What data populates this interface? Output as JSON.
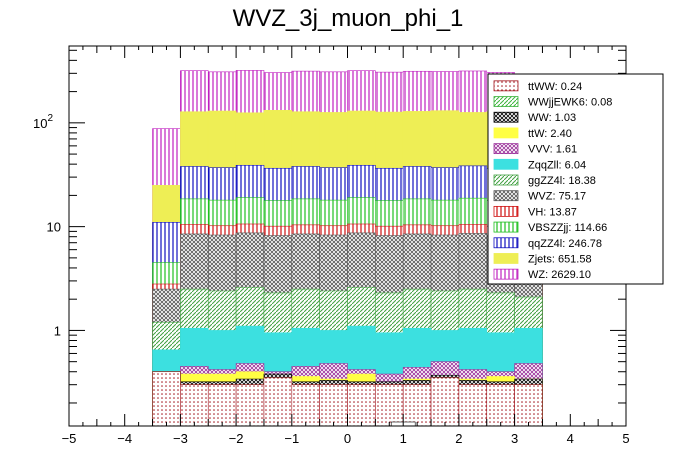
{
  "chart_data": {
    "type": "bar",
    "title": "WVZ_3j_muon_phi_1",
    "stacked": true,
    "log_y": true,
    "grid": false,
    "legend_position": "top-right",
    "xlim": [
      -5,
      5
    ],
    "ylim": [
      0.12,
      550
    ],
    "x_ticks": [
      "−5",
      "−4",
      "−3",
      "−2",
      "−1",
      "0",
      "1",
      "2",
      "3",
      "4",
      "5"
    ],
    "y_ticks": [
      {
        "value": 1,
        "label": "1"
      },
      {
        "value": 10,
        "label": "10"
      },
      {
        "value": 100,
        "label": "10",
        "sup": "2"
      }
    ],
    "bin_edges": [
      -3.5,
      -3.0,
      -2.5,
      -2.0,
      -1.5,
      -1.0,
      -0.5,
      0.0,
      0.5,
      1.0,
      1.5,
      2.0,
      2.5,
      3.0,
      3.5
    ],
    "stack_totals": [
      {
        "name": "ttWW",
        "totals": [
          0.4,
          0.3,
          0.3,
          0.3,
          0.35,
          0.3,
          0.3,
          0.3,
          0.3,
          0.3,
          0.35,
          0.3,
          0.3,
          0.3
        ]
      },
      {
        "name": "WWjjEWK6",
        "totals": [
          0.4,
          0.3,
          0.3,
          0.3,
          0.35,
          0.3,
          0.3,
          0.3,
          0.3,
          0.3,
          0.35,
          0.3,
          0.3,
          0.3
        ]
      },
      {
        "name": "WW",
        "totals": [
          0.4,
          0.32,
          0.32,
          0.34,
          0.38,
          0.32,
          0.33,
          0.32,
          0.32,
          0.33,
          0.37,
          0.33,
          0.32,
          0.34
        ]
      },
      {
        "name": "ttW",
        "totals": [
          0.4,
          0.38,
          0.38,
          0.4,
          0.32,
          0.36,
          0.34,
          0.38,
          0.3,
          0.34,
          0.32,
          0.34,
          0.36,
          0.34
        ]
      },
      {
        "name": "VVV",
        "totals": [
          0.4,
          0.45,
          0.42,
          0.48,
          0.4,
          0.45,
          0.48,
          0.42,
          0.38,
          0.44,
          0.5,
          0.42,
          0.4,
          0.48
        ]
      },
      {
        "name": "ZqqZll",
        "totals": [
          0.65,
          1.05,
          1.0,
          1.1,
          0.95,
          1.05,
          1.0,
          1.1,
          0.95,
          1.05,
          1.0,
          1.05,
          0.95,
          1.05
        ]
      },
      {
        "name": "ggZZ4l",
        "totals": [
          1.2,
          2.5,
          2.4,
          2.6,
          2.3,
          2.5,
          2.4,
          2.6,
          2.3,
          2.5,
          2.4,
          2.5,
          2.3,
          2.1
        ]
      },
      {
        "name": "WVZ",
        "totals": [
          2.5,
          8.5,
          8.3,
          8.7,
          8.2,
          8.5,
          8.3,
          8.7,
          8.2,
          8.5,
          8.3,
          8.6,
          8.2,
          5.0
        ]
      },
      {
        "name": "VH",
        "totals": [
          2.8,
          10.5,
          10.2,
          10.6,
          10.1,
          10.4,
          10.2,
          10.6,
          10.1,
          10.4,
          10.2,
          10.5,
          10.1,
          5.8
        ]
      },
      {
        "name": "VBSZZjj",
        "totals": [
          4.5,
          18.5,
          18.0,
          19.0,
          17.8,
          18.5,
          18.0,
          19.0,
          17.8,
          18.5,
          18.0,
          18.8,
          17.8,
          9.5
        ]
      },
      {
        "name": "qqZZ4l",
        "totals": [
          11,
          38,
          37,
          39,
          36.5,
          38,
          37,
          39,
          36.5,
          38,
          37,
          38.5,
          36.5,
          21
        ]
      },
      {
        "name": "Zjets",
        "totals": [
          25,
          128,
          130,
          125,
          132,
          128,
          126,
          130,
          127,
          129,
          131,
          126,
          128,
          45
        ]
      },
      {
        "name": "WZ",
        "totals": [
          88,
          318,
          310,
          320,
          305,
          315,
          310,
          318,
          308,
          314,
          312,
          316,
          306,
          150
        ]
      }
    ],
    "legend_entries": [
      {
        "label": "ttWW: 0.24",
        "color": "#a2161e",
        "pattern": "dots"
      },
      {
        "label": "WWjjEWK6: 0.08",
        "color": "#3cb43c",
        "pattern": "diag"
      },
      {
        "label": "WW: 1.03",
        "color": "#000000",
        "pattern": "cross"
      },
      {
        "label": "ttW: 2.40",
        "color": "#ffff44",
        "pattern": "solid"
      },
      {
        "label": "VVV: 1.61",
        "color": "#9b309b",
        "pattern": "cross"
      },
      {
        "label": "ZqqZll: 6.04",
        "color": "#3ce0e0",
        "pattern": "solid"
      },
      {
        "label": "ggZZ4l: 18.38",
        "color": "#40a040",
        "pattern": "diag"
      },
      {
        "label": "WVZ: 75.17",
        "color": "#555555",
        "pattern": "cross"
      },
      {
        "label": "VH: 13.87",
        "color": "#d01010",
        "pattern": "vert"
      },
      {
        "label": "VBSZZjj: 114.66",
        "color": "#20c020",
        "pattern": "vert"
      },
      {
        "label": "qqZZ4l: 246.78",
        "color": "#1010c0",
        "pattern": "vert"
      },
      {
        "label": "Zjets: 651.58",
        "color": "#eeee55",
        "pattern": "solid"
      },
      {
        "label": "WZ: 2629.10",
        "color": "#c020c0",
        "pattern": "vert"
      }
    ]
  }
}
